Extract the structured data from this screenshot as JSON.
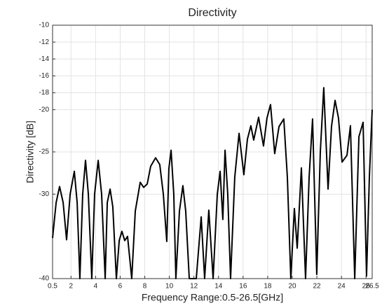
{
  "chart_data": {
    "type": "line",
    "title": "Directivity",
    "x_label": "Frequency Range:0.5-26.5[GHz]",
    "y_label": "Directivity [dB]",
    "xlim": [
      0.5,
      26.5
    ],
    "ylim": [
      -40,
      -10
    ],
    "xticks": [
      0.5,
      2,
      4,
      6,
      8,
      10,
      12,
      14,
      16,
      18,
      20,
      22,
      24,
      26,
      26.5
    ],
    "yticks": [
      -40,
      -30,
      -25,
      -20,
      -18,
      -16,
      -14,
      -12,
      -10
    ],
    "grid": true,
    "series": [
      {
        "name": "Directivity",
        "color": "#000000",
        "x": [
          0.5,
          0.79,
          1.07,
          1.36,
          1.64,
          1.93,
          2.27,
          2.5,
          2.72,
          2.95,
          3.18,
          3.41,
          3.69,
          3.92,
          4.21,
          4.49,
          4.78,
          4.95,
          5.18,
          5.4,
          5.69,
          5.92,
          6.14,
          6.37,
          6.6,
          6.94,
          7.23,
          7.63,
          7.91,
          8.2,
          8.48,
          8.88,
          9.22,
          9.51,
          9.79,
          9.96,
          10.14,
          10.36,
          10.53,
          10.82,
          11.1,
          11.33,
          11.62,
          12.19,
          12.59,
          12.87,
          13.21,
          13.56,
          13.9,
          14.13,
          14.35,
          14.53,
          14.75,
          14.98,
          15.32,
          15.67,
          16.06,
          16.35,
          16.63,
          16.86,
          17.26,
          17.66,
          17.94,
          18.23,
          18.57,
          18.92,
          19.31,
          19.6,
          19.88,
          20.17,
          20.4,
          20.74,
          21.08,
          21.37,
          21.65,
          21.99,
          22.28,
          22.56,
          22.91,
          23.19,
          23.48,
          23.76,
          24.05,
          24.45,
          24.73,
          25.08,
          25.42,
          25.76,
          26.04,
          26.27,
          26.5
        ],
        "values": [
          -35.2,
          -31,
          -29.1,
          -31,
          -35.4,
          -30,
          -27.3,
          -31,
          -40,
          -30,
          -26,
          -30,
          -40,
          -30,
          -26,
          -30,
          -40,
          -31,
          -29.4,
          -31.5,
          -40,
          -35.5,
          -34.4,
          -35.5,
          -35,
          -40,
          -32,
          -28.6,
          -29.2,
          -28.8,
          -26.7,
          -25.7,
          -26.5,
          -30,
          -35.6,
          -27,
          -24.8,
          -30,
          -40,
          -32,
          -29,
          -32,
          -40,
          -40,
          -32.7,
          -40,
          -31.9,
          -40,
          -30,
          -27.3,
          -33,
          -24.8,
          -30,
          -40,
          -28,
          -22.8,
          -27.7,
          -23.5,
          -21.9,
          -23.6,
          -20.9,
          -24.3,
          -21,
          -19.4,
          -25.2,
          -22,
          -21.1,
          -28,
          -40,
          -31.7,
          -36.4,
          -26.9,
          -40,
          -28,
          -21.1,
          -39.5,
          -25,
          -17.4,
          -29.4,
          -22,
          -18.9,
          -21,
          -26.2,
          -25.4,
          -21.9,
          -40,
          -23.2,
          -21.5,
          -39.7,
          -28,
          -20
        ]
      }
    ]
  }
}
